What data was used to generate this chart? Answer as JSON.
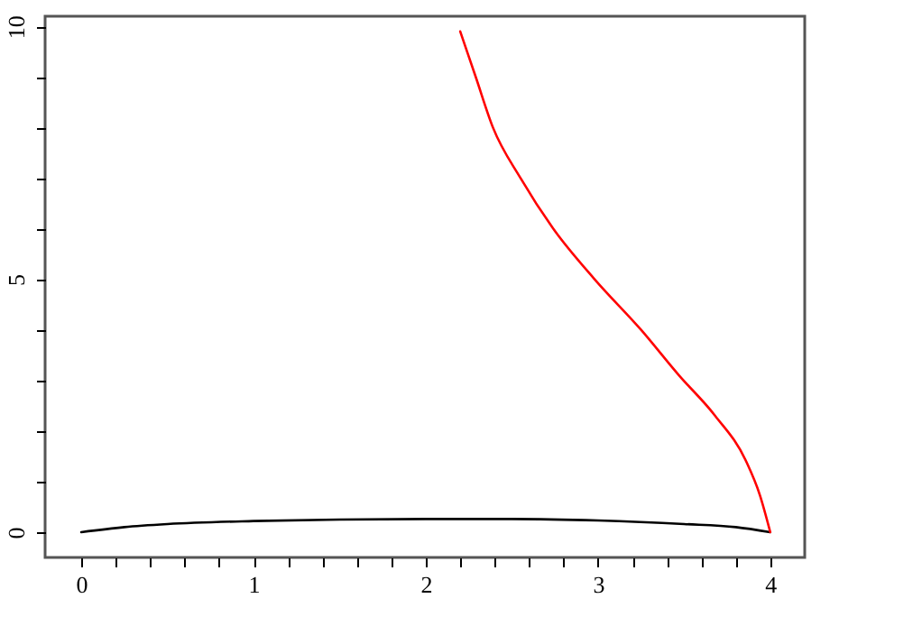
{
  "chart_data": {
    "type": "line",
    "xlim": [
      -0.21,
      4.2
    ],
    "ylim": [
      -0.5,
      10.2
    ],
    "xticks": [
      0,
      {
        "value": 0.2,
        "label": null
      },
      {
        "value": 0.4,
        "label": null
      },
      {
        "value": 0.6,
        "label": null
      },
      {
        "value": 0.8,
        "label": null
      },
      1,
      {
        "value": 1.2,
        "label": null
      },
      {
        "value": 1.4,
        "label": null
      },
      {
        "value": 1.6,
        "label": null
      },
      {
        "value": 1.8,
        "label": null
      },
      2,
      {
        "value": 2.2,
        "label": null
      },
      {
        "value": 2.4,
        "label": null
      },
      {
        "value": 2.6,
        "label": null
      },
      {
        "value": 2.8,
        "label": null
      },
      3,
      {
        "value": 3.2,
        "label": null
      },
      {
        "value": 3.4,
        "label": null
      },
      {
        "value": 3.6,
        "label": null
      },
      {
        "value": 3.8,
        "label": null
      },
      4
    ],
    "yticks": [
      0,
      {
        "value": 1,
        "label": null
      },
      {
        "value": 2,
        "label": null
      },
      {
        "value": 3,
        "label": null
      },
      {
        "value": 4,
        "label": null
      },
      5,
      {
        "value": 6,
        "label": null
      },
      {
        "value": 7,
        "label": null
      },
      {
        "value": 8,
        "label": null
      },
      {
        "value": 9,
        "label": null
      },
      10
    ],
    "grid": false,
    "line_style": "solid",
    "series": [
      {
        "color": "#000000",
        "x": [
          0,
          0.25,
          0.5,
          1,
          1.5,
          2,
          2.5,
          3,
          3.5,
          3.8,
          4
        ],
        "values": [
          0,
          0.1,
          0.16,
          0.22,
          0.25,
          0.26,
          0.26,
          0.23,
          0.16,
          0.1,
          0
        ]
      },
      {
        "color": "#ff0000",
        "x": [
          2.2,
          2.29,
          2.39,
          2.55,
          2.74,
          2.98,
          3.25,
          3.47,
          3.68,
          3.86,
          3.94,
          4.0
        ],
        "values": [
          9.9,
          9.0,
          8.0,
          7.0,
          6.0,
          5.0,
          4.0,
          3.1,
          2.3,
          1.4,
          0.73,
          0
        ]
      }
    ]
  }
}
